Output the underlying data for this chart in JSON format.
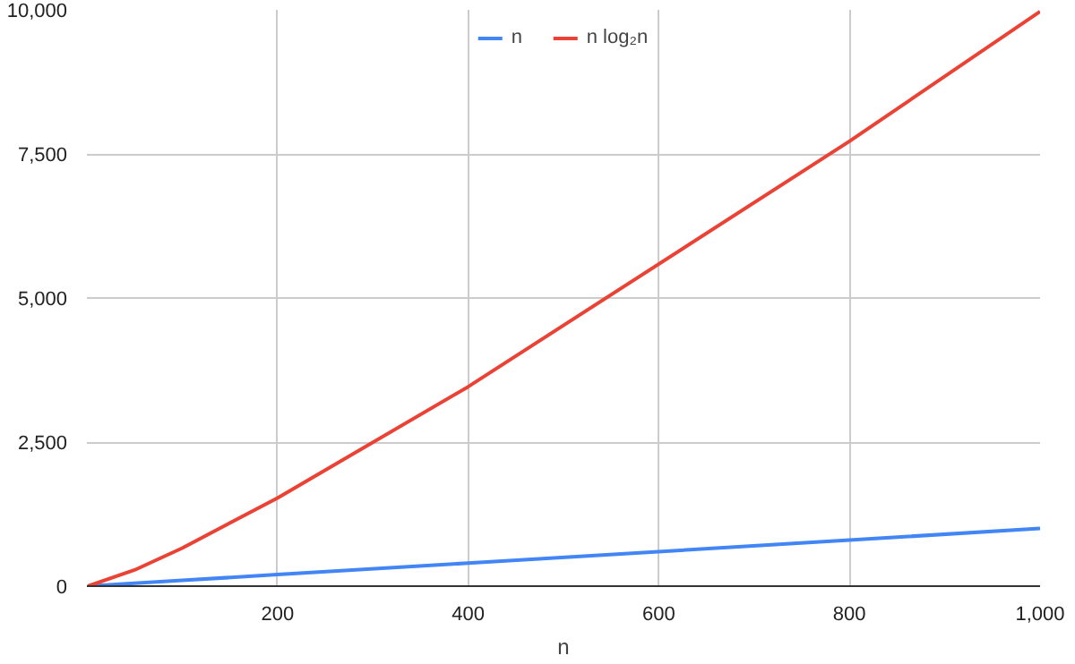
{
  "chart_data": {
    "type": "line",
    "xlabel": "n",
    "x": [
      1,
      50,
      100,
      200,
      400,
      800,
      1000
    ],
    "series": [
      {
        "name": "n",
        "color": "#4285f4",
        "values": [
          1,
          50,
          100,
          200,
          400,
          800,
          1000
        ]
      },
      {
        "name": "n log₂n",
        "color": "#ea4335",
        "values": [
          0,
          280,
          660,
          1530,
          3460,
          7720,
          9970
        ]
      }
    ],
    "xlim": [
      0,
      1000
    ],
    "xticks": [
      {
        "value": 200,
        "label": "200"
      },
      {
        "value": 400,
        "label": "400"
      },
      {
        "value": 600,
        "label": "600"
      },
      {
        "value": 800,
        "label": "800"
      },
      {
        "value": 1000,
        "label": "1,000"
      }
    ],
    "ylim": [
      0,
      10000
    ],
    "yticks": [
      {
        "value": 0,
        "label": "0"
      },
      {
        "value": 2500,
        "label": "2,500"
      },
      {
        "value": 5000,
        "label": "5,000"
      },
      {
        "value": 7500,
        "label": "7,500"
      },
      {
        "value": 10000,
        "label": "10,000"
      }
    ],
    "grid": true,
    "legend": "top center",
    "marker": "none",
    "line_style": "solid"
  }
}
